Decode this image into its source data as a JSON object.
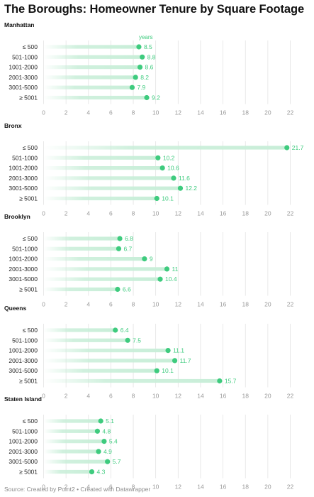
{
  "title": "The Boroughs: Homeowner Tenure by Square Footage",
  "footer": {
    "source": "Source: Created by Point2",
    "separator": " • ",
    "credit": "Created with Datawrapper"
  },
  "colors": {
    "accent": "#3ecb7e",
    "stem": "#c8eed8",
    "grid": "#e2e2e2",
    "label": "#3ecb7e",
    "tick": "#9a9a9a"
  },
  "chart_data": {
    "type": "dot-plot",
    "unit_label": "years",
    "categories": [
      "≤ 500",
      "501-1000",
      "1001-2000",
      "2001-3000",
      "3001-5000",
      "≥ 5001"
    ],
    "xlim": [
      0,
      22
    ],
    "xticks": [
      0,
      2,
      4,
      6,
      8,
      10,
      12,
      14,
      16,
      18,
      20,
      22
    ],
    "panels": [
      {
        "name": "Manhattan",
        "values": [
          8.5,
          8.8,
          8.6,
          8.2,
          7.9,
          9.2
        ]
      },
      {
        "name": "Bronx",
        "values": [
          21.7,
          10.2,
          10.6,
          11.6,
          12.2,
          10.1
        ]
      },
      {
        "name": "Brooklyn",
        "values": [
          6.8,
          6.7,
          9,
          11,
          10.4,
          6.6
        ]
      },
      {
        "name": "Queens",
        "values": [
          6.4,
          7.5,
          11.1,
          11.7,
          10.1,
          15.7
        ]
      },
      {
        "name": "Staten Island",
        "values": [
          5.1,
          4.8,
          5.4,
          4.9,
          5.7,
          4.3
        ]
      }
    ]
  }
}
